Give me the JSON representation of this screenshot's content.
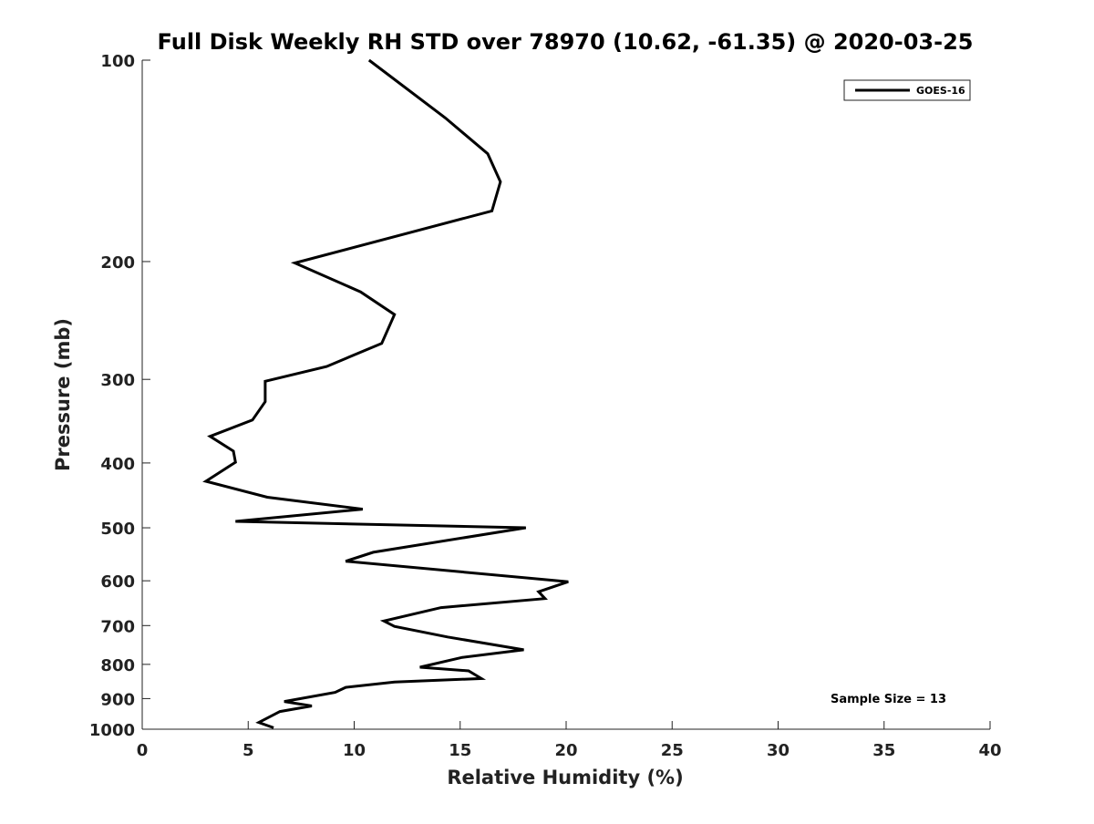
{
  "chart_data": {
    "type": "line",
    "title": "Full Disk Weekly RH STD over 78970 (10.62, -61.35) @ 2020-03-25",
    "xlabel": "Relative Humidity (%)",
    "ylabel": "Pressure (mb)",
    "xlim": [
      0,
      40
    ],
    "ylim": [
      100,
      1000
    ],
    "y_scale": "log",
    "y_reversed": true,
    "x_ticks": [
      "0",
      "5",
      "10",
      "15",
      "20",
      "25",
      "30",
      "35",
      "40"
    ],
    "y_ticks": [
      "100",
      "200",
      "300",
      "400",
      "500",
      "600",
      "700",
      "800",
      "900",
      "1000"
    ],
    "grid": false,
    "legend_position": "top-right",
    "annotation": "Sample Size = 13",
    "series": [
      {
        "name": "GOES-16",
        "color": "#000000",
        "x": [
          10.7,
          14.3,
          16.3,
          16.9,
          16.5,
          7.2,
          10.3,
          11.9,
          11.3,
          8.7,
          5.8,
          5.8,
          5.2,
          3.2,
          4.3,
          4.4,
          3.0,
          5.9,
          10.4,
          4.4,
          18.1,
          10.9,
          9.6,
          20.1,
          18.7,
          19.0,
          14.1,
          11.4,
          11.9,
          14.4,
          18.0,
          15.1,
          13.1,
          15.4,
          16.0,
          11.9,
          9.6,
          9.1,
          6.7,
          8.0,
          6.5,
          5.5,
          6.2
        ],
        "y": [
          100,
          122,
          138,
          152,
          168,
          201,
          222,
          240,
          265,
          287,
          302,
          324,
          345,
          365,
          384,
          399,
          426,
          450,
          469,
          489,
          500,
          544,
          561,
          602,
          623,
          638,
          658,
          689,
          702,
          728,
          761,
          781,
          808,
          818,
          840,
          850,
          866,
          881,
          909,
          923,
          941,
          977,
          995
        ]
      }
    ]
  }
}
